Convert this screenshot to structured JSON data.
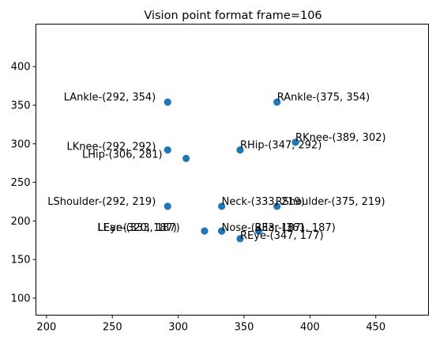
{
  "chart_data": {
    "type": "scatter",
    "title": "Vision point format frame=106",
    "xlabel": "",
    "ylabel": "",
    "xlim": [
      192,
      490
    ],
    "ylim": [
      78,
      455
    ],
    "xticks": [
      200,
      250,
      300,
      350,
      400,
      450
    ],
    "yticks": [
      100,
      150,
      200,
      250,
      300,
      350,
      400
    ],
    "grid": false,
    "marker_color": "#1f77b4",
    "points": [
      {
        "label": "LAnkle-(292, 354)",
        "x": 292,
        "y": 354,
        "anchor": "end",
        "dx": -15,
        "dy": -2
      },
      {
        "label": "RAnkle-(375, 354)",
        "x": 375,
        "y": 354,
        "anchor": "start",
        "dx": 0,
        "dy": -2
      },
      {
        "label": "LKnee-(292, 292)",
        "x": 292,
        "y": 292,
        "anchor": "end",
        "dx": -15,
        "dy": 0
      },
      {
        "label": "RKnee-(389, 302)",
        "x": 389,
        "y": 302,
        "anchor": "start",
        "dx": 0,
        "dy": -2
      },
      {
        "label": "LHip-(306, 281)",
        "x": 306,
        "y": 281,
        "anchor": "end",
        "dx": -30,
        "dy": -1
      },
      {
        "label": "RHip-(347, 292)",
        "x": 347,
        "y": 292,
        "anchor": "start",
        "dx": 0,
        "dy": -2
      },
      {
        "label": "LShoulder-(292, 219)",
        "x": 292,
        "y": 219,
        "anchor": "end",
        "dx": -15,
        "dy": -2
      },
      {
        "label": "Neck-(333, 219)",
        "x": 333,
        "y": 219,
        "anchor": "start",
        "dx": 0,
        "dy": -2
      },
      {
        "label": "RShoulder-(375, 219)",
        "x": 375,
        "y": 219,
        "anchor": "start",
        "dx": -2,
        "dy": -2
      },
      {
        "label": "LEar-(320, 187)",
        "x": 320,
        "y": 187,
        "anchor": "end",
        "dx": -35,
        "dy": 0
      },
      {
        "label": "LEye-(333, 187)",
        "x": 333,
        "y": 187,
        "anchor": "end",
        "dx": -53,
        "dy": 0
      },
      {
        "label": "Nose-(333, 187)",
        "x": 333,
        "y": 187,
        "anchor": "start",
        "dx": 0,
        "dy": 0
      },
      {
        "label": "REar-(361, 187)",
        "x": 361,
        "y": 187,
        "anchor": "start",
        "dx": -5,
        "dy": 0
      },
      {
        "label": "REye-(347, 177)",
        "x": 347,
        "y": 177,
        "anchor": "start",
        "dx": 0,
        "dy": 0
      }
    ]
  }
}
